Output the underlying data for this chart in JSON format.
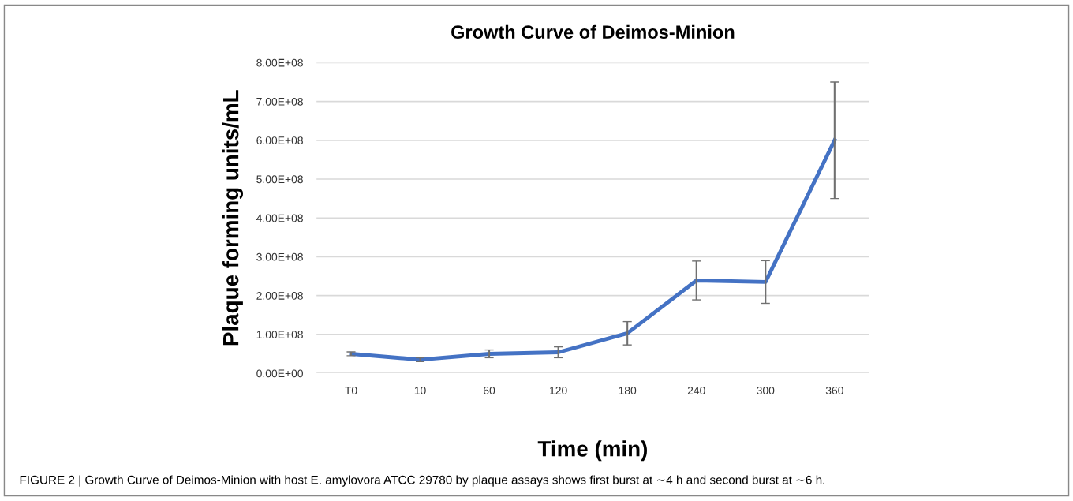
{
  "chart_data": {
    "type": "line",
    "title": "Growth Curve of Deimos-Minion",
    "xlabel": "Time (min)",
    "ylabel": "Plaque forming units/mL",
    "categories": [
      "T0",
      "10",
      "60",
      "120",
      "180",
      "240",
      "300",
      "360"
    ],
    "series": [
      {
        "color": "#4472c4",
        "values": [
          50000000,
          35000000,
          50000000,
          54000000,
          103000000,
          239000000,
          235000000,
          600000000
        ],
        "errors": [
          5000000,
          5000000,
          10000000,
          14000000,
          30000000,
          50000000,
          55000000,
          150000000
        ]
      }
    ],
    "ylim": [
      0,
      800000000
    ],
    "yticks": [
      {
        "value": 0,
        "label": "0.00E+00"
      },
      {
        "value": 100000000,
        "label": "1.00E+08"
      },
      {
        "value": 200000000,
        "label": "2.00E+08"
      },
      {
        "value": 300000000,
        "label": "3.00E+08"
      },
      {
        "value": 400000000,
        "label": "4.00E+08"
      },
      {
        "value": 500000000,
        "label": "5.00E+08"
      },
      {
        "value": 600000000,
        "label": "6.00E+08"
      },
      {
        "value": 700000000,
        "label": "7.00E+08"
      },
      {
        "value": 800000000,
        "label": "8.00E+08"
      }
    ],
    "grid": "y",
    "marker": "none",
    "line_style": "solid",
    "legend": false,
    "annotations": [
      "FIGURE 2 | Growth Curve of Deimos-Minion with host E. amylovora ATCC 29780 by plaque assays shows first burst at ∼4 h and second burst at ∼6 h."
    ]
  }
}
